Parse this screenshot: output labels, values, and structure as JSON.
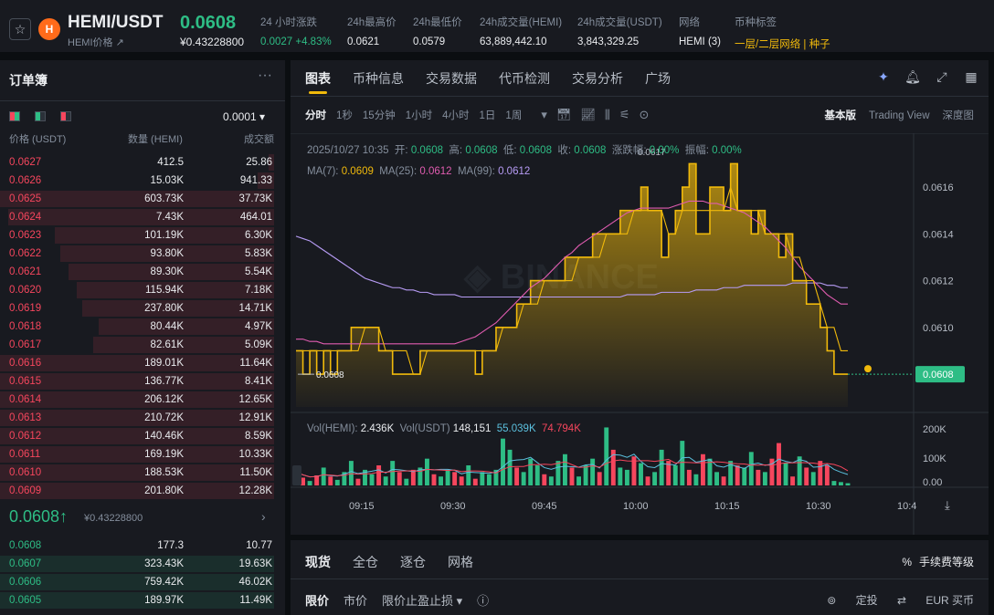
{
  "header": {
    "pair": "HEMI/USDT",
    "pair_sub": "HEMI价格 ↗",
    "coin_letter": "H",
    "last_price": "0.0608",
    "last_price_usd": "¥0.43228800",
    "stats": [
      {
        "label": "24 小时涨跌",
        "value": "0.0027 +4.83%",
        "tone": "green"
      },
      {
        "label": "24h最高价",
        "value": "0.0621",
        "tone": ""
      },
      {
        "label": "24h最低价",
        "value": "0.0579",
        "tone": ""
      },
      {
        "label": "24h成交量(HEMI)",
        "value": "63,889,442.10",
        "tone": ""
      },
      {
        "label": "24h成交量(USDT)",
        "value": "3,843,329.25",
        "tone": ""
      },
      {
        "label": "网络",
        "value": "HEMI (3)",
        "tone": ""
      },
      {
        "label": "币种标签",
        "value": "一层/二层网络 | 种子",
        "tone": "yellow"
      }
    ]
  },
  "orderbook": {
    "title": "订单簿",
    "precision": "0.0001 ▾",
    "headers": {
      "price": "价格 (USDT)",
      "qty": "数量 (HEMI)",
      "total": "成交额"
    },
    "asks": [
      {
        "p": "0.0627",
        "q": "412.5",
        "t": "25.86",
        "depth": 0.02
      },
      {
        "p": "0.0626",
        "q": "15.03K",
        "t": "941.33",
        "depth": 0.06
      },
      {
        "p": "0.0625",
        "q": "603.73K",
        "t": "37.73K",
        "depth": 1.0
      },
      {
        "p": "0.0624",
        "q": "7.43K",
        "t": "464.01",
        "depth": 0.97
      },
      {
        "p": "0.0623",
        "q": "101.19K",
        "t": "6.30K",
        "depth": 0.8
      },
      {
        "p": "0.0622",
        "q": "93.80K",
        "t": "5.83K",
        "depth": 0.78
      },
      {
        "p": "0.0621",
        "q": "89.30K",
        "t": "5.54K",
        "depth": 0.75
      },
      {
        "p": "0.0620",
        "q": "115.94K",
        "t": "7.18K",
        "depth": 0.72
      },
      {
        "p": "0.0619",
        "q": "237.80K",
        "t": "14.71K",
        "depth": 0.7
      },
      {
        "p": "0.0618",
        "q": "80.44K",
        "t": "4.97K",
        "depth": 0.64
      },
      {
        "p": "0.0617",
        "q": "82.61K",
        "t": "5.09K",
        "depth": 0.66
      },
      {
        "p": "0.0616",
        "q": "189.01K",
        "t": "11.64K",
        "depth": 1.0
      },
      {
        "p": "0.0615",
        "q": "136.77K",
        "t": "8.41K",
        "depth": 1.0
      },
      {
        "p": "0.0614",
        "q": "206.12K",
        "t": "12.65K",
        "depth": 1.0
      },
      {
        "p": "0.0613",
        "q": "210.72K",
        "t": "12.91K",
        "depth": 1.0
      },
      {
        "p": "0.0612",
        "q": "140.46K",
        "t": "8.59K",
        "depth": 1.0
      },
      {
        "p": "0.0611",
        "q": "169.19K",
        "t": "10.33K",
        "depth": 1.0
      },
      {
        "p": "0.0610",
        "q": "188.53K",
        "t": "11.50K",
        "depth": 1.0
      },
      {
        "p": "0.0609",
        "q": "201.80K",
        "t": "12.28K",
        "depth": 1.0
      }
    ],
    "mid_price": "0.0608↑",
    "mid_price_usd": "¥0.43228800",
    "bids": [
      {
        "p": "0.0608",
        "q": "177.3",
        "t": "10.77",
        "depth": 0.0
      },
      {
        "p": "0.0607",
        "q": "323.43K",
        "t": "19.63K",
        "depth": 1.0
      },
      {
        "p": "0.0606",
        "q": "759.42K",
        "t": "46.02K",
        "depth": 1.0
      },
      {
        "p": "0.0605",
        "q": "189.97K",
        "t": "11.49K",
        "depth": 1.0
      }
    ]
  },
  "chart_tabs": [
    "图表",
    "币种信息",
    "交易数据",
    "代币检测",
    "交易分析",
    "广场"
  ],
  "timeframes": [
    "分时",
    "1秒",
    "15分钟",
    "1小时",
    "4小时",
    "1日",
    "1周"
  ],
  "views": [
    "基本版",
    "Trading View",
    "深度图"
  ],
  "ohlc": {
    "date": "2025/10/27 10:35",
    "open_label": "开:",
    "open": "0.0608",
    "high_label": "高:",
    "high": "0.0608",
    "low_label": "低:",
    "low": "0.0608",
    "close_label": "收:",
    "close": "0.0608",
    "chg_label": "涨跌幅:",
    "chg": "0.00%",
    "amp_label": "振幅:",
    "amp": "0.00%"
  },
  "ma": {
    "ma7_label": "MA(7):",
    "ma7": "0.0609",
    "ma25_label": "MA(25):",
    "ma25": "0.0612",
    "ma99_label": "MA(99):",
    "ma99": "0.0612"
  },
  "vol": {
    "hemi_label": "Vol(HEMI):",
    "hemi": "2.436K",
    "usdt_label": "Vol(USDT)",
    "usdt": "148,151",
    "a": "55.039K",
    "b": "74.794K"
  },
  "colors": {
    "up": "#2ebd85",
    "down": "#f6465d",
    "accent": "#f0b90b",
    "ma7": "#f0b90b",
    "ma25": "#e05cb0",
    "ma99": "#b79cf5"
  },
  "chart_data": {
    "type": "area",
    "x_ticks": [
      "09:15",
      "09:30",
      "09:45",
      "10:00",
      "10:15",
      "10:30",
      "10:4"
    ],
    "y_ticks": [
      "0.0616",
      "0.0614",
      "0.0612",
      "0.0610"
    ],
    "ylim": [
      0.06066,
      0.06176
    ],
    "price_label": "0.0608",
    "high_marker": "0.0617",
    "low_marker": "0.0608",
    "price": [
      0.0609,
      0.0608,
      0.0609,
      0.0608,
      0.0609,
      0.0608,
      0.0609,
      0.0609,
      0.061,
      0.061,
      0.061,
      0.061,
      0.0609,
      0.0609,
      0.0608,
      0.0608,
      0.0608,
      0.0608,
      0.0609,
      0.0609,
      0.0609,
      0.0609,
      0.0609,
      0.0609,
      0.0609,
      0.0609,
      0.0608,
      0.0609,
      0.0609,
      0.061,
      0.061,
      0.061,
      0.0611,
      0.0611,
      0.0612,
      0.0612,
      0.0612,
      0.0612,
      0.0612,
      0.0613,
      0.0613,
      0.0613,
      0.0613,
      0.0614,
      0.0614,
      0.0614,
      0.0614,
      0.0615,
      0.0615,
      0.0615,
      0.0616,
      0.0615,
      0.0615,
      0.0613,
      0.0614,
      0.0615,
      0.0616,
      0.0617,
      0.0614,
      0.0614,
      0.0616,
      0.0616,
      0.0615,
      0.0617,
      0.0615,
      0.0615,
      0.0614,
      0.0615,
      0.0614,
      0.0614,
      0.0613,
      0.0614,
      0.0612,
      0.0612,
      0.0611,
      0.0611,
      0.061,
      0.0609,
      0.0608,
      0.0608,
      0.0608
    ],
    "ma7": [
      0.0609,
      0.0609,
      0.0609,
      0.0609,
      0.0609,
      0.0609,
      0.0609,
      0.0609,
      0.0609,
      0.0609,
      0.061,
      0.061,
      0.061,
      0.0609,
      0.0609,
      0.0609,
      0.0609,
      0.0608,
      0.0608,
      0.0609,
      0.0609,
      0.0609,
      0.0609,
      0.0609,
      0.0609,
      0.0609,
      0.0609,
      0.0609,
      0.0609,
      0.0609,
      0.061,
      0.061,
      0.061,
      0.0611,
      0.0611,
      0.0611,
      0.0612,
      0.0612,
      0.0612,
      0.0612,
      0.0612,
      0.0613,
      0.0613,
      0.0613,
      0.0613,
      0.0614,
      0.0614,
      0.0614,
      0.0614,
      0.0615,
      0.0615,
      0.0615,
      0.0615,
      0.0615,
      0.0614,
      0.0614,
      0.0615,
      0.0615,
      0.0615,
      0.0615,
      0.0615,
      0.0615,
      0.0615,
      0.0616,
      0.0615,
      0.0615,
      0.0615,
      0.0615,
      0.0614,
      0.0614,
      0.0614,
      0.0614,
      0.0613,
      0.0613,
      0.0612,
      0.0612,
      0.0611,
      0.061,
      0.061,
      0.0609,
      0.0609
    ],
    "ma25": [
      0.06095,
      0.06095,
      0.06094,
      0.06094,
      0.06093,
      0.06093,
      0.06093,
      0.06093,
      0.06093,
      0.06093,
      0.06093,
      0.06093,
      0.06093,
      0.06093,
      0.06093,
      0.06093,
      0.06093,
      0.06093,
      0.06093,
      0.06093,
      0.06093,
      0.06093,
      0.06093,
      0.06093,
      0.06094,
      0.06095,
      0.06096,
      0.06098,
      0.061,
      0.06102,
      0.06105,
      0.06108,
      0.06111,
      0.06114,
      0.06117,
      0.06119,
      0.06121,
      0.06124,
      0.06127,
      0.0613,
      0.06132,
      0.06135,
      0.06137,
      0.06139,
      0.06141,
      0.06143,
      0.06145,
      0.06147,
      0.06149,
      0.0615,
      0.06151,
      0.06151,
      0.06151,
      0.06151,
      0.06151,
      0.06152,
      0.06153,
      0.06154,
      0.06154,
      0.06154,
      0.06153,
      0.06153,
      0.06152,
      0.06151,
      0.0615,
      0.06149,
      0.06147,
      0.06145,
      0.06143,
      0.0614,
      0.06137,
      0.06134,
      0.0613,
      0.06126,
      0.06123,
      0.0612,
      0.06117,
      0.06114,
      0.06112,
      0.0611,
      0.0611
    ],
    "ma99": [
      0.06139,
      0.06138,
      0.06137,
      0.06135,
      0.06133,
      0.06131,
      0.06129,
      0.06127,
      0.06125,
      0.06123,
      0.06121,
      0.0612,
      0.06119,
      0.06118,
      0.06117,
      0.06117,
      0.06116,
      0.06116,
      0.06115,
      0.06115,
      0.06114,
      0.06114,
      0.06114,
      0.06114,
      0.06113,
      0.06113,
      0.06113,
      0.06113,
      0.06113,
      0.06113,
      0.06113,
      0.06113,
      0.06113,
      0.06113,
      0.06113,
      0.06113,
      0.06113,
      0.06113,
      0.06113,
      0.06113,
      0.06113,
      0.06113,
      0.06113,
      0.06113,
      0.06113,
      0.06113,
      0.06113,
      0.06113,
      0.06114,
      0.06114,
      0.06114,
      0.06114,
      0.06114,
      0.06115,
      0.06115,
      0.06115,
      0.06115,
      0.06115,
      0.06116,
      0.06116,
      0.06116,
      0.06116,
      0.06117,
      0.06117,
      0.06117,
      0.06118,
      0.06118,
      0.06118,
      0.06118,
      0.06118,
      0.06118,
      0.06118,
      0.06119,
      0.06119,
      0.06119,
      0.06119,
      0.06119,
      0.06118,
      0.06118,
      0.06117,
      0.06117
    ],
    "volume": [
      60,
      35,
      20,
      45,
      80,
      40,
      25,
      60,
      110,
      30,
      70,
      50,
      90,
      40,
      110,
      60,
      30,
      70,
      80,
      120,
      50,
      40,
      70,
      60,
      40,
      90,
      30,
      60,
      50,
      70,
      210,
      160,
      80,
      60,
      120,
      90,
      50,
      40,
      110,
      140,
      80,
      40,
      90,
      120,
      60,
      260,
      160,
      80,
      70,
      130,
      100,
      40,
      60,
      160,
      110,
      90,
      200,
      70,
      50,
      140,
      120,
      60,
      40,
      110,
      90,
      80,
      150,
      70,
      60,
      120,
      190,
      100,
      40,
      130,
      80,
      60,
      110,
      90,
      20,
      15,
      10
    ],
    "volume_dir": [
      1,
      0,
      1,
      0,
      1,
      0,
      1,
      1,
      1,
      0,
      1,
      1,
      0,
      1,
      1,
      0,
      1,
      0,
      1,
      1,
      0,
      1,
      1,
      0,
      0,
      1,
      0,
      1,
      1,
      1,
      1,
      1,
      0,
      1,
      1,
      1,
      0,
      1,
      1,
      1,
      0,
      1,
      1,
      1,
      0,
      1,
      0,
      1,
      1,
      0,
      1,
      0,
      1,
      1,
      0,
      1,
      1,
      0,
      1,
      0,
      1,
      1,
      0,
      1,
      0,
      1,
      1,
      0,
      1,
      0,
      0,
      1,
      0,
      1,
      0,
      1,
      0,
      0,
      1,
      1,
      1
    ],
    "vol_ticks": [
      "200K",
      "100K",
      "0.00"
    ],
    "vol_max": 270
  },
  "order": {
    "tabs": [
      "现货",
      "全仓",
      "逐仓",
      "网格"
    ],
    "fee": "手续费等级",
    "types": [
      "限价",
      "市价",
      "限价止盈止损 ▾"
    ],
    "right": [
      "定投",
      "EUR 买币"
    ]
  }
}
